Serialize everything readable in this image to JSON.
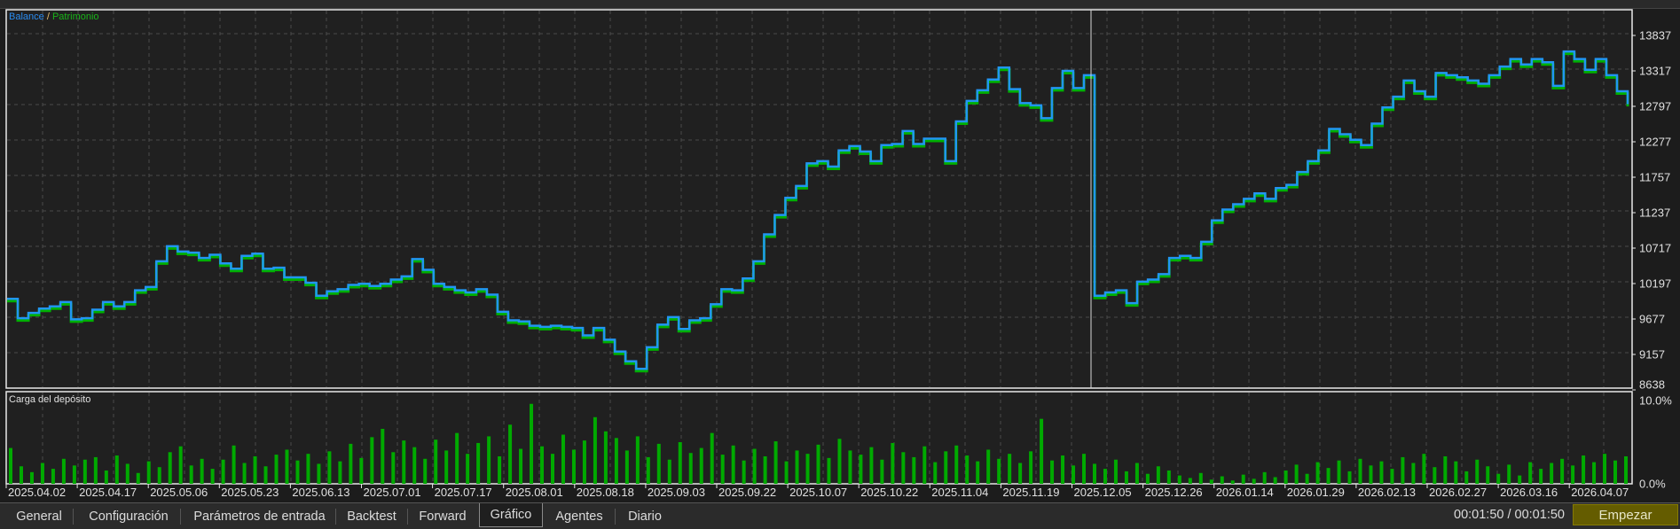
{
  "legend": {
    "balance": "Balance",
    "separator": "/",
    "equity": "Patrimonio"
  },
  "colors": {
    "balance": "#2196f3",
    "equity": "#00b000",
    "load": "#00aa00",
    "background": "#202020",
    "start_button": "#645c00"
  },
  "load_panel": {
    "title": "Carga del depósito",
    "top_label": "10.0%",
    "bottom_label": "0.0%"
  },
  "chart_data": {
    "type": "line",
    "y_axis_labels": [
      "13837",
      "13317",
      "12797",
      "12277",
      "11757",
      "11237",
      "10717",
      "10197",
      "9677",
      "9157",
      "8638"
    ],
    "ylim": [
      8638,
      13837
    ],
    "x_axis_labels": [
      "2025.04.02",
      "2025.04.17",
      "2025.05.06",
      "2025.05.23",
      "2025.06.13",
      "2025.07.01",
      "2025.07.17",
      "2025.08.01",
      "2025.08.18",
      "2025.09.03",
      "2025.09.22",
      "2025.10.07",
      "2025.10.22",
      "2025.11.04",
      "2025.11.19",
      "2025.12.05",
      "2025.12.26",
      "2026.01.14",
      "2026.01.29",
      "2026.02.13",
      "2026.02.27",
      "2026.03.16",
      "2026.04.07"
    ],
    "grid": true,
    "series": [
      {
        "name": "Balance",
        "values": [
          9972,
          9688,
          9767,
          9830,
          9862,
          9925,
          9672,
          9688,
          9814,
          9925,
          9862,
          9925,
          10098,
          10146,
          10524,
          10745,
          10666,
          10651,
          10572,
          10619,
          10493,
          10414,
          10603,
          10635,
          10414,
          10430,
          10288,
          10288,
          10209,
          10019,
          10083,
          10114,
          10177,
          10193,
          10161,
          10193,
          10256,
          10303,
          10556,
          10398,
          10193,
          10146,
          10098,
          10067,
          10114,
          10035,
          9783,
          9657,
          9641,
          9578,
          9562,
          9578,
          9562,
          9546,
          9436,
          9546,
          9373,
          9199,
          9057,
          8946,
          9262,
          9594,
          9704,
          9530,
          9657,
          9688,
          9893,
          10114,
          10098,
          10272,
          10524,
          10919,
          11203,
          11455,
          11629,
          11960,
          11992,
          11913,
          12150,
          12213,
          12134,
          11992,
          12229,
          12244,
          12434,
          12244,
          12323,
          12323,
          11992,
          12576,
          12876,
          13033,
          13191,
          13365,
          13049,
          12844,
          12812,
          12623,
          13065,
          13317,
          13065,
          13254,
          10019,
          10067,
          10098,
          9909,
          10225,
          10256,
          10335,
          10572,
          10603,
          10572,
          10809,
          11124,
          11282,
          11361,
          11440,
          11519,
          11440,
          11598,
          11645,
          11834,
          11992,
          12150,
          12465,
          12387,
          12307,
          12229,
          12544,
          12781,
          12939,
          13176,
          13018,
          12939,
          13286,
          13254,
          13223,
          13176,
          13128,
          13254,
          13381,
          13491,
          13412,
          13491,
          13444,
          13097,
          13602,
          13491,
          13333,
          13491,
          13254,
          13018,
          12828
        ]
      },
      {
        "name": "Patrimonio"
      }
    ],
    "deposit_load": {
      "ylim": [
        0,
        10
      ],
      "values": [
        4.3,
        2.1,
        1.4,
        2.5,
        1.8,
        3.0,
        2.2,
        2.9,
        3.2,
        1.6,
        3.4,
        2.4,
        1.3,
        2.7,
        2.0,
        3.8,
        4.5,
        2.2,
        3.0,
        1.8,
        2.9,
        4.6,
        2.5,
        3.3,
        2.1,
        3.5,
        4.1,
        2.8,
        3.6,
        2.4,
        3.9,
        2.7,
        4.8,
        3.1,
        5.6,
        6.6,
        3.8,
        5.2,
        4.4,
        3.0,
        5.3,
        4.0,
        6.1,
        3.6,
        4.9,
        5.7,
        3.3,
        7.1,
        4.2,
        9.6,
        4.5,
        3.6,
        5.9,
        4.1,
        5.2,
        8.0,
        6.3,
        5.5,
        4.0,
        5.7,
        3.2,
        4.8,
        2.9,
        5.0,
        3.7,
        4.3,
        6.1,
        3.5,
        4.6,
        2.8,
        4.2,
        3.3,
        5.1,
        2.7,
        4.0,
        3.6,
        4.7,
        3.1,
        5.4,
        4.0,
        3.5,
        4.4,
        2.9,
        4.9,
        3.8,
        3.2,
        4.5,
        2.6,
        3.9,
        4.6,
        3.4,
        2.7,
        4.1,
        3.0,
        3.6,
        2.5,
        3.9,
        7.8,
        2.8,
        3.4,
        2.2,
        3.6,
        2.4,
        1.8,
        2.9,
        1.5,
        2.5,
        1.2,
        2.1,
        1.6,
        1.0,
        0.7,
        1.3,
        0.5,
        0.9,
        0.4,
        1.1,
        0.6,
        1.4,
        0.8,
        1.6,
        2.3,
        1.2,
        2.6,
        1.9,
        2.8,
        1.5,
        3.0,
        2.2,
        2.7,
        1.8,
        3.2,
        2.5,
        3.6,
        2.0,
        3.3,
        2.7,
        1.5,
        2.9,
        2.1,
        1.2,
        2.3,
        1.0,
        2.6,
        1.8,
        2.5,
        3.0,
        2.2,
        3.4,
        2.6,
        3.6,
        2.8,
        3.3
      ]
    }
  },
  "tabs": [
    {
      "label": "General",
      "active": false
    },
    {
      "label": "Configuración",
      "active": false
    },
    {
      "label": "Parámetros de entrada",
      "active": false
    },
    {
      "label": "Backtest",
      "active": false
    },
    {
      "label": "Forward",
      "active": false
    },
    {
      "label": "Gráfico",
      "active": true
    },
    {
      "label": "Agentes",
      "active": false
    },
    {
      "label": "Diario",
      "active": false
    }
  ],
  "status": {
    "time": "00:01:50 / 00:01:50"
  },
  "start_button": {
    "label": "Empezar"
  }
}
